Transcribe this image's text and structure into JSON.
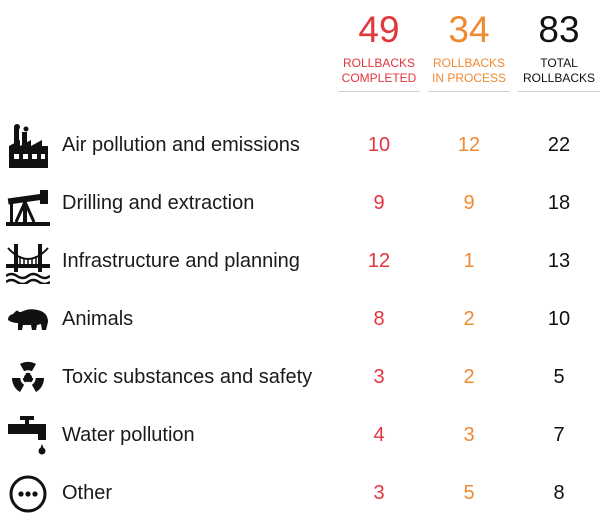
{
  "chart_data": {
    "type": "table",
    "columns": [
      {
        "total": "49",
        "label_line1": "ROLLBACKS",
        "label_line2": "COMPLETED",
        "color": "#e2363d"
      },
      {
        "total": "34",
        "label_line1": "ROLLBACKS",
        "label_line2": "IN PROCESS",
        "color": "#f08a32"
      },
      {
        "total": "83",
        "label_line1": "TOTAL",
        "label_line2": "ROLLBACKS",
        "color": "#111111"
      }
    ],
    "rows": [
      {
        "icon": "factory-icon",
        "label": "Air pollution and emissions",
        "completed": 10,
        "in_process": 12,
        "total": 22
      },
      {
        "icon": "oil-pump-icon",
        "label": "Drilling and extraction",
        "completed": 9,
        "in_process": 9,
        "total": 18
      },
      {
        "icon": "bridge-icon",
        "label": "Infrastructure and planning",
        "completed": 12,
        "in_process": 1,
        "total": 13
      },
      {
        "icon": "bear-icon",
        "label": "Animals",
        "completed": 8,
        "in_process": 2,
        "total": 10
      },
      {
        "icon": "radiation-icon",
        "label": "Toxic substances and safety",
        "completed": 3,
        "in_process": 2,
        "total": 5
      },
      {
        "icon": "faucet-icon",
        "label": "Water pollution",
        "completed": 4,
        "in_process": 3,
        "total": 7
      },
      {
        "icon": "ellipsis-circle-icon",
        "label": "Other",
        "completed": 3,
        "in_process": 5,
        "total": 8
      }
    ]
  }
}
